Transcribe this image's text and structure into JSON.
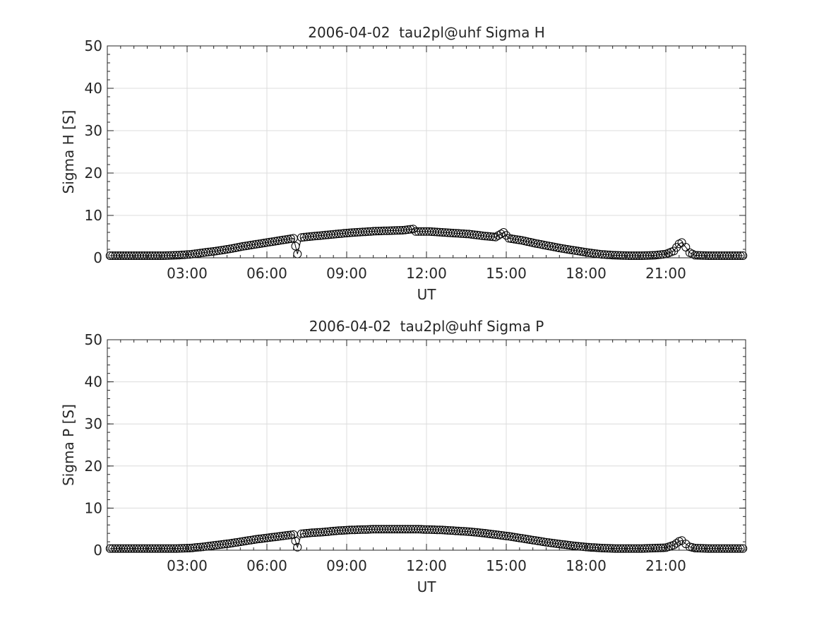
{
  "chart_data": [
    {
      "type": "line",
      "title": "2006-04-02  tau2pl@uhf Sigma H",
      "xlabel": "UT",
      "ylabel": "Sigma H [S]",
      "xlim": [
        0,
        24
      ],
      "ylim": [
        0,
        50
      ],
      "xticks": [
        3,
        6,
        9,
        12,
        15,
        18,
        21
      ],
      "xtick_labels": [
        "03:00",
        "06:00",
        "09:00",
        "12:00",
        "15:00",
        "18:00",
        "21:00"
      ],
      "yticks": [
        0,
        10,
        20,
        30,
        40,
        50
      ],
      "ytick_labels": [
        "0",
        "10",
        "20",
        "30",
        "40",
        "50"
      ],
      "grid": true,
      "marker": "open-circle",
      "series": [
        {
          "x": [
            0.1,
            0.6,
            1.1,
            1.6,
            2.1,
            2.6,
            3.1,
            3.6,
            4.1,
            4.6,
            5.1,
            5.6,
            6.1,
            6.6,
            7.0,
            7.15,
            7.3,
            7.6,
            8.1,
            8.6,
            9.1,
            9.6,
            10.1,
            10.6,
            11.1,
            11.5,
            11.6,
            12.1,
            12.6,
            13.1,
            13.6,
            14.1,
            14.6,
            14.9,
            15.1,
            15.6,
            16.1,
            16.6,
            17.1,
            17.6,
            18.1,
            18.6,
            19.1,
            19.6,
            20.1,
            20.6,
            21.0,
            21.3,
            21.5,
            21.6,
            21.75,
            21.9,
            22.1,
            22.6,
            23.1,
            23.6,
            23.9
          ],
          "y": [
            0.5,
            0.5,
            0.5,
            0.5,
            0.5,
            0.6,
            0.8,
            1.2,
            1.6,
            2.1,
            2.7,
            3.2,
            3.7,
            4.2,
            4.6,
            0.9,
            4.8,
            5.0,
            5.3,
            5.6,
            5.9,
            6.1,
            6.3,
            6.4,
            6.5,
            6.8,
            6.2,
            6.2,
            6.0,
            5.8,
            5.6,
            5.2,
            4.9,
            6.0,
            4.6,
            4.1,
            3.4,
            2.8,
            2.2,
            1.7,
            1.2,
            0.8,
            0.6,
            0.5,
            0.5,
            0.6,
            0.9,
            1.6,
            3.3,
            3.6,
            2.5,
            1.2,
            0.6,
            0.5,
            0.5,
            0.5,
            0.5
          ]
        }
      ]
    },
    {
      "type": "line",
      "title": "2006-04-02  tau2pl@uhf Sigma P",
      "xlabel": "UT",
      "ylabel": "Sigma P [S]",
      "xlim": [
        0,
        24
      ],
      "ylim": [
        0,
        50
      ],
      "xticks": [
        3,
        6,
        9,
        12,
        15,
        18,
        21
      ],
      "xtick_labels": [
        "03:00",
        "06:00",
        "09:00",
        "12:00",
        "15:00",
        "18:00",
        "21:00"
      ],
      "yticks": [
        0,
        10,
        20,
        30,
        40,
        50
      ],
      "ytick_labels": [
        "0",
        "10",
        "20",
        "30",
        "40",
        "50"
      ],
      "grid": true,
      "marker": "open-circle",
      "series": [
        {
          "x": [
            0.1,
            0.6,
            1.1,
            1.6,
            2.1,
            2.6,
            3.1,
            3.6,
            4.1,
            4.6,
            5.1,
            5.6,
            6.1,
            6.6,
            7.0,
            7.15,
            7.3,
            7.6,
            8.1,
            8.6,
            9.1,
            9.6,
            10.1,
            10.6,
            11.1,
            11.6,
            12.1,
            12.6,
            13.1,
            13.6,
            14.1,
            14.6,
            15.1,
            15.6,
            16.1,
            16.6,
            17.1,
            17.6,
            18.1,
            18.6,
            19.1,
            19.6,
            20.1,
            20.6,
            21.0,
            21.3,
            21.5,
            21.6,
            21.75,
            21.9,
            22.1,
            22.6,
            23.1,
            23.6,
            23.9
          ],
          "y": [
            0.4,
            0.4,
            0.4,
            0.4,
            0.4,
            0.4,
            0.5,
            0.8,
            1.2,
            1.6,
            2.1,
            2.6,
            3.0,
            3.4,
            3.7,
            0.7,
            3.9,
            4.1,
            4.3,
            4.6,
            4.8,
            4.9,
            5.0,
            5.0,
            5.0,
            5.0,
            4.9,
            4.8,
            4.6,
            4.4,
            4.1,
            3.7,
            3.3,
            2.8,
            2.3,
            1.8,
            1.4,
            1.0,
            0.7,
            0.5,
            0.4,
            0.4,
            0.4,
            0.5,
            0.6,
            1.2,
            2.1,
            2.3,
            1.5,
            0.8,
            0.5,
            0.4,
            0.4,
            0.4,
            0.4
          ]
        }
      ]
    }
  ]
}
